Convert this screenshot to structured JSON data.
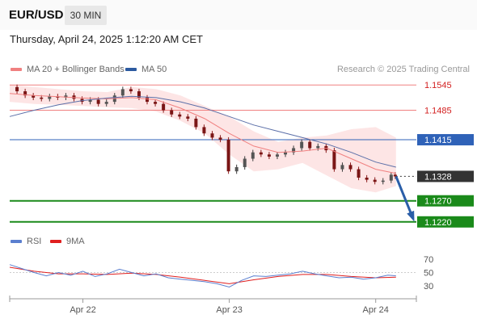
{
  "header": {
    "symbol": "EUR/USD",
    "timeframe": "30 MIN",
    "datetime": "Thursday, April 24, 2025 1:12:20 AM CET"
  },
  "legend": {
    "ma20": {
      "label": "MA 20 + Bollinger Bands",
      "color": "#f08080"
    },
    "ma50": {
      "label": "MA 50",
      "color": "#2c5aa0"
    },
    "rsi": {
      "label": "RSI",
      "color": "#5b7fcf"
    },
    "ma9": {
      "label": "9MA",
      "color": "#e01f1f"
    }
  },
  "credit": "Research © 2025 Trading Central",
  "chart_data": [
    {
      "type": "line",
      "panel": "price",
      "ylim": [
        1.121,
        1.1555
      ],
      "xlim": [
        0,
        100
      ],
      "x_ticks": [
        {
          "x": 18,
          "label": "Apr 22"
        },
        {
          "x": 54,
          "label": "Apr 23"
        },
        {
          "x": 90,
          "label": "Apr 24"
        }
      ],
      "levels": [
        {
          "value": 1.1545,
          "label": "1.1545",
          "kind": "resistance"
        },
        {
          "value": 1.1485,
          "label": "1.1485",
          "kind": "resistance"
        },
        {
          "value": 1.1415,
          "label": "1.1415",
          "kind": "pivot"
        },
        {
          "value": 1.1328,
          "label": "1.1328",
          "kind": "last"
        },
        {
          "value": 1.127,
          "label": "1.1270",
          "kind": "support"
        },
        {
          "value": 1.122,
          "label": "1.1220",
          "kind": "support"
        }
      ],
      "close": [
        [
          0,
          1.154
        ],
        [
          2,
          1.153
        ],
        [
          4,
          1.152
        ],
        [
          6,
          1.1515
        ],
        [
          8,
          1.1512
        ],
        [
          10,
          1.1518
        ],
        [
          12,
          1.1515
        ],
        [
          14,
          1.152
        ],
        [
          16,
          1.1512
        ],
        [
          18,
          1.1505
        ],
        [
          20,
          1.151
        ],
        [
          22,
          1.15
        ],
        [
          24,
          1.1505
        ],
        [
          26,
          1.152
        ],
        [
          28,
          1.1535
        ],
        [
          30,
          1.153
        ],
        [
          32,
          1.1515
        ],
        [
          34,
          1.1505
        ],
        [
          36,
          1.15
        ],
        [
          38,
          1.1485
        ],
        [
          40,
          1.1475
        ],
        [
          42,
          1.147
        ],
        [
          44,
          1.1465
        ],
        [
          46,
          1.1445
        ],
        [
          48,
          1.143
        ],
        [
          50,
          1.142
        ],
        [
          52,
          1.1415
        ],
        [
          54,
          1.134
        ],
        [
          56,
          1.135
        ],
        [
          58,
          1.137
        ],
        [
          60,
          1.1385
        ],
        [
          62,
          1.138
        ],
        [
          64,
          1.1375
        ],
        [
          66,
          1.138
        ],
        [
          68,
          1.1385
        ],
        [
          70,
          1.1395
        ],
        [
          72,
          1.141
        ],
        [
          74,
          1.1395
        ],
        [
          76,
          1.14
        ],
        [
          78,
          1.139
        ],
        [
          80,
          1.1345
        ],
        [
          82,
          1.1355
        ],
        [
          84,
          1.1345
        ],
        [
          86,
          1.1325
        ],
        [
          88,
          1.132
        ],
        [
          90,
          1.1315
        ],
        [
          92,
          1.1318
        ],
        [
          94,
          1.1332
        ],
        [
          95,
          1.1328
        ]
      ],
      "ma20": [
        [
          0,
          1.1525
        ],
        [
          6,
          1.152
        ],
        [
          12,
          1.1517
        ],
        [
          18,
          1.1514
        ],
        [
          24,
          1.1512
        ],
        [
          30,
          1.1515
        ],
        [
          36,
          1.151
        ],
        [
          42,
          1.149
        ],
        [
          48,
          1.1465
        ],
        [
          54,
          1.143
        ],
        [
          60,
          1.14
        ],
        [
          66,
          1.1385
        ],
        [
          72,
          1.1388
        ],
        [
          78,
          1.1395
        ],
        [
          84,
          1.137
        ],
        [
          90,
          1.1345
        ],
        [
          95,
          1.1335
        ]
      ],
      "bb_upper": [
        [
          0,
          1.1545
        ],
        [
          6,
          1.154
        ],
        [
          12,
          1.1535
        ],
        [
          18,
          1.153
        ],
        [
          24,
          1.1528
        ],
        [
          30,
          1.154
        ],
        [
          36,
          1.1535
        ],
        [
          42,
          1.152
        ],
        [
          48,
          1.1495
        ],
        [
          54,
          1.147
        ],
        [
          60,
          1.1435
        ],
        [
          66,
          1.141
        ],
        [
          72,
          1.142
        ],
        [
          78,
          1.1425
        ],
        [
          84,
          1.144
        ],
        [
          90,
          1.1445
        ],
        [
          95,
          1.142
        ]
      ],
      "bb_lower": [
        [
          0,
          1.1505
        ],
        [
          6,
          1.15
        ],
        [
          12,
          1.1498
        ],
        [
          18,
          1.1495
        ],
        [
          24,
          1.1492
        ],
        [
          30,
          1.149
        ],
        [
          36,
          1.1482
        ],
        [
          42,
          1.146
        ],
        [
          48,
          1.143
        ],
        [
          54,
          1.138
        ],
        [
          60,
          1.134
        ],
        [
          66,
          1.1345
        ],
        [
          72,
          1.136
        ],
        [
          78,
          1.133
        ],
        [
          84,
          1.13
        ],
        [
          90,
          1.129
        ],
        [
          95,
          1.1305
        ]
      ],
      "ma50": [
        [
          0,
          1.147
        ],
        [
          6,
          1.1485
        ],
        [
          12,
          1.1498
        ],
        [
          18,
          1.1508
        ],
        [
          24,
          1.1514
        ],
        [
          30,
          1.1518
        ],
        [
          36,
          1.1515
        ],
        [
          42,
          1.1505
        ],
        [
          48,
          1.149
        ],
        [
          54,
          1.147
        ],
        [
          60,
          1.145
        ],
        [
          66,
          1.1435
        ],
        [
          72,
          1.142
        ],
        [
          78,
          1.1405
        ],
        [
          84,
          1.1385
        ],
        [
          90,
          1.1362
        ],
        [
          95,
          1.135
        ]
      ],
      "forecast": {
        "from": [
          95,
          1.1328
        ],
        "to": [
          100,
          1.122
        ]
      }
    },
    {
      "type": "line",
      "panel": "rsi",
      "ylim": [
        20,
        80
      ],
      "y_ticks": [
        70,
        50,
        30
      ],
      "rsi": [
        [
          0,
          62
        ],
        [
          3,
          56
        ],
        [
          6,
          50
        ],
        [
          9,
          45
        ],
        [
          12,
          50
        ],
        [
          15,
          46
        ],
        [
          18,
          52
        ],
        [
          21,
          44
        ],
        [
          24,
          48
        ],
        [
          27,
          55
        ],
        [
          30,
          50
        ],
        [
          33,
          45
        ],
        [
          36,
          48
        ],
        [
          39,
          42
        ],
        [
          42,
          40
        ],
        [
          45,
          38
        ],
        [
          48,
          36
        ],
        [
          51,
          33
        ],
        [
          54,
          28
        ],
        [
          57,
          38
        ],
        [
          60,
          45
        ],
        [
          63,
          44
        ],
        [
          66,
          46
        ],
        [
          69,
          48
        ],
        [
          72,
          52
        ],
        [
          75,
          48
        ],
        [
          78,
          45
        ],
        [
          81,
          42
        ],
        [
          84,
          43
        ],
        [
          87,
          40
        ],
        [
          90,
          42
        ],
        [
          93,
          46
        ],
        [
          95,
          45
        ]
      ],
      "ma9": [
        [
          0,
          58
        ],
        [
          6,
          52
        ],
        [
          12,
          48
        ],
        [
          18,
          48
        ],
        [
          24,
          47
        ],
        [
          30,
          49
        ],
        [
          36,
          47
        ],
        [
          42,
          43
        ],
        [
          48,
          38
        ],
        [
          54,
          33
        ],
        [
          60,
          39
        ],
        [
          66,
          44
        ],
        [
          72,
          47
        ],
        [
          78,
          47
        ],
        [
          84,
          44
        ],
        [
          90,
          42
        ],
        [
          95,
          43
        ]
      ]
    }
  ]
}
